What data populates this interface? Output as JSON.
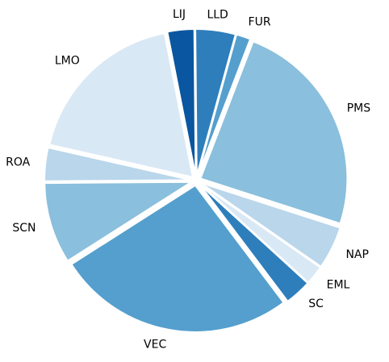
{
  "chart_data": {
    "type": "pie",
    "title": "",
    "labels": [
      "PMS",
      "NAP",
      "EML",
      "SC",
      "VEC",
      "SCN",
      "ROA",
      "LMO",
      "LIJ",
      "LLD",
      "FUR"
    ],
    "values": [
      23.0,
      4.5,
      2.0,
      2.8,
      25.0,
      8.5,
      3.5,
      17.5,
      2.8,
      4.2,
      1.5
    ],
    "colors": [
      "#8abfdd",
      "#b9d6eb",
      "#d9e8f5",
      "#2e7ebc",
      "#549fcd",
      "#8abfdd",
      "#b9d6eb",
      "#d9e8f5",
      "#0a56a0",
      "#2e7ebc",
      "#549fcd"
    ],
    "start_angle_deg": 69,
    "direction": "clockwise",
    "explode": "all slices slightly separated",
    "legend": "none"
  }
}
